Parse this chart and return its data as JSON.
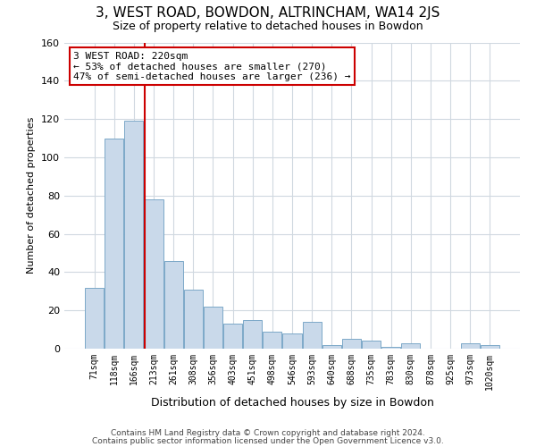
{
  "title": "3, WEST ROAD, BOWDON, ALTRINCHAM, WA14 2JS",
  "subtitle": "Size of property relative to detached houses in Bowdon",
  "xlabel": "Distribution of detached houses by size in Bowdon",
  "ylabel": "Number of detached properties",
  "bar_labels": [
    "71sqm",
    "118sqm",
    "166sqm",
    "213sqm",
    "261sqm",
    "308sqm",
    "356sqm",
    "403sqm",
    "451sqm",
    "498sqm",
    "546sqm",
    "593sqm",
    "640sqm",
    "688sqm",
    "735sqm",
    "783sqm",
    "830sqm",
    "878sqm",
    "925sqm",
    "973sqm",
    "1020sqm"
  ],
  "bar_values": [
    32,
    110,
    119,
    78,
    46,
    31,
    22,
    13,
    15,
    9,
    8,
    14,
    2,
    5,
    4,
    1,
    3,
    0,
    0,
    3,
    2
  ],
  "bar_color": "#c9d9ea",
  "bar_edge_color": "#7ca8c8",
  "vline_color": "#cc0000",
  "vline_bar_index": 3,
  "annotation_title": "3 WEST ROAD: 220sqm",
  "annotation_line1": "← 53% of detached houses are smaller (270)",
  "annotation_line2": "47% of semi-detached houses are larger (236) →",
  "annotation_box_color": "#cc0000",
  "ylim": [
    0,
    160
  ],
  "yticks": [
    0,
    20,
    40,
    60,
    80,
    100,
    120,
    140,
    160
  ],
  "footer1": "Contains HM Land Registry data © Crown copyright and database right 2024.",
  "footer2": "Contains public sector information licensed under the Open Government Licence v3.0.",
  "bg_color": "#ffffff",
  "grid_color": "#d0d8e0"
}
